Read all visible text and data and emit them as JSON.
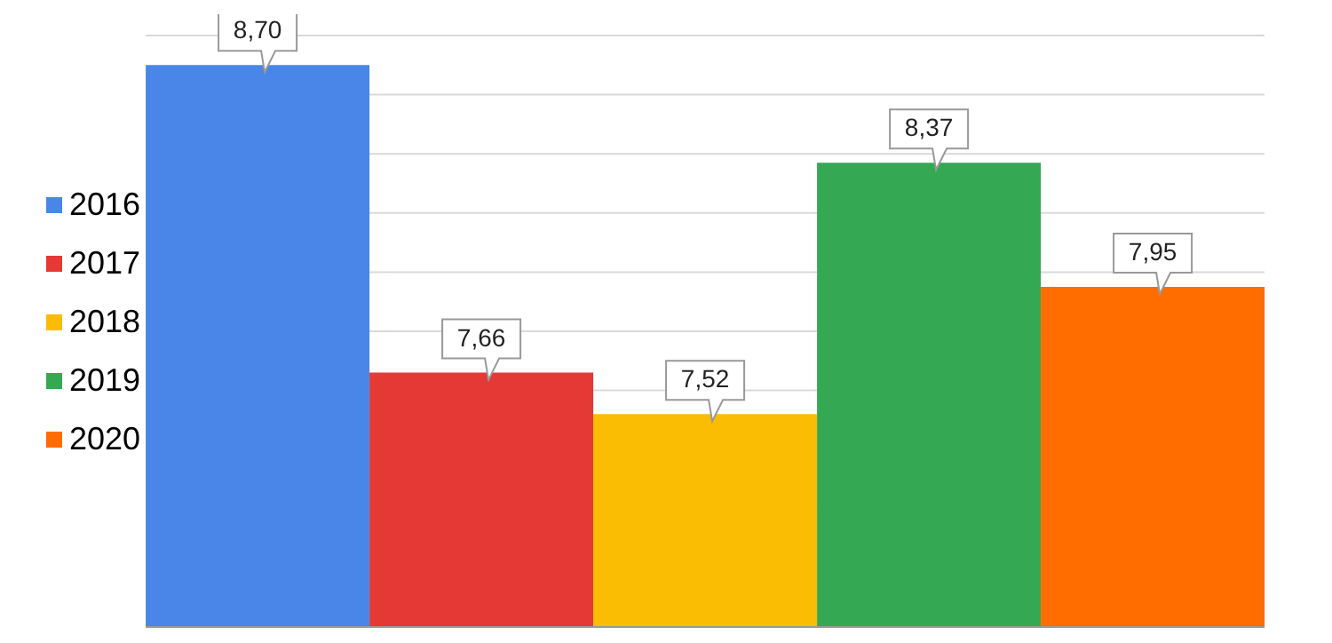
{
  "chart_data": {
    "type": "bar",
    "categories": [
      null
    ],
    "series": [
      {
        "name": "2016",
        "color": "#4a86e8",
        "values": [
          8.7
        ],
        "value_labels": [
          "8,70"
        ]
      },
      {
        "name": "2017",
        "color": "#e53935",
        "values": [
          7.66
        ],
        "value_labels": [
          "7,66"
        ]
      },
      {
        "name": "2018",
        "color": "#fbbc04",
        "values": [
          7.52
        ],
        "value_labels": [
          "7,52"
        ]
      },
      {
        "name": "2019",
        "color": "#34a853",
        "values": [
          8.37
        ],
        "value_labels": [
          "8,37"
        ]
      },
      {
        "name": "2020",
        "color": "#ff6d01",
        "values": [
          7.95
        ],
        "value_labels": [
          "7,95"
        ]
      }
    ],
    "ylim": [
      6.8,
      8.8
    ],
    "tick_labels": false,
    "grid": "y",
    "legend": "left"
  }
}
